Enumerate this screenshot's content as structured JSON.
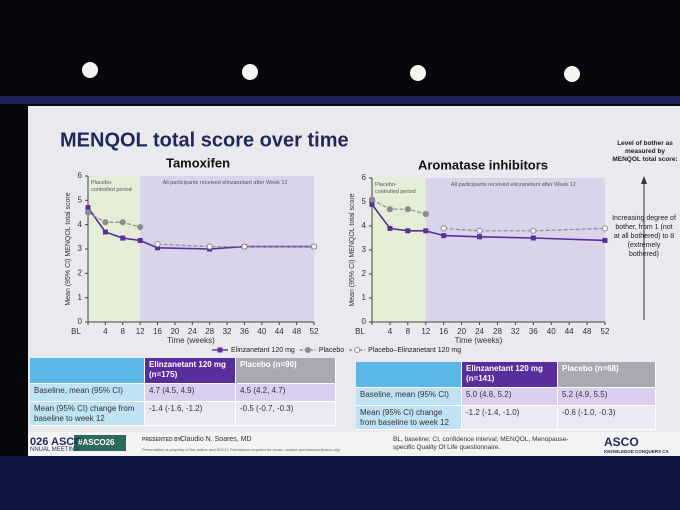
{
  "header": {
    "title": "MENQOL total score over time"
  },
  "chart_data": [
    {
      "type": "line",
      "title": "Tamoxifen",
      "x_label": "Time (weeks)",
      "y_label": "Mean (95% CI) MENQOL total score",
      "periods": [
        {
          "label": "Placebo-controlled period",
          "xlim": [
            0,
            12
          ],
          "color": "#e4eed6"
        },
        {
          "label": "All participants received elinzanetant after Week 12",
          "xlim": [
            12,
            52
          ],
          "color": "#d9d3ec"
        }
      ],
      "x": [
        0,
        4,
        8,
        12,
        16,
        28,
        36,
        52
      ],
      "xlim": [
        0,
        52
      ],
      "xticks": [
        {
          "value": 0,
          "label": "BL"
        },
        4,
        8,
        12,
        16,
        20,
        24,
        28,
        32,
        36,
        40,
        44,
        48,
        52
      ],
      "ylim": [
        0,
        6
      ],
      "yticks": [
        0,
        1,
        2,
        3,
        4,
        5,
        6
      ],
      "series": [
        {
          "name": "Elinzanetant 120 mg",
          "color": "#5a2d9c",
          "values": [
            4.7,
            3.7,
            3.45,
            3.35,
            3.05,
            3.0,
            3.1,
            3.1
          ]
        },
        {
          "name": "Placebo",
          "color": "#8c8c8c",
          "values": [
            4.5,
            4.1,
            4.1,
            3.9,
            null,
            null,
            null,
            null
          ]
        },
        {
          "name": "Placebo–Elinzanetant 120 mg",
          "color": "#8c8c8c",
          "values": [
            null,
            null,
            null,
            null,
            3.2,
            3.1,
            3.1,
            3.1
          ]
        }
      ]
    },
    {
      "type": "line",
      "title": "Aromatase inhibitors",
      "x_label": "Time (weeks)",
      "y_label": "Mean (95% CI) MENQOL total score",
      "periods": [
        {
          "label": "Placebo-controlled period",
          "xlim": [
            0,
            12
          ],
          "color": "#e4eed6"
        },
        {
          "label": "All participants received elinzanetant after Week 12",
          "xlim": [
            12,
            52
          ],
          "color": "#d9d3ec"
        }
      ],
      "x": [
        0,
        4,
        8,
        12,
        16,
        24,
        36,
        52
      ],
      "xlim": [
        0,
        52
      ],
      "xticks": [
        {
          "value": 0,
          "label": "BL"
        },
        4,
        8,
        12,
        16,
        20,
        24,
        28,
        32,
        36,
        40,
        44,
        48,
        52
      ],
      "ylim": [
        0,
        6
      ],
      "yticks": [
        0,
        1,
        2,
        3,
        4,
        5,
        6
      ],
      "series": [
        {
          "color": "#5a2d9c",
          "values": [
            4.9,
            3.9,
            3.8,
            3.8,
            3.6,
            3.55,
            3.5,
            3.4
          ]
        },
        {
          "color": "#8c8c8c",
          "values": [
            5.1,
            4.7,
            4.7,
            4.5,
            null,
            null,
            null,
            null
          ]
        },
        {
          "color": "#8c8c8c",
          "values": [
            null,
            null,
            null,
            null,
            3.9,
            3.8,
            3.8,
            3.9
          ]
        }
      ]
    }
  ],
  "tables": [
    {
      "columns": [
        "Elinzanetant 120 mg (n=175)",
        "Placebo (n=90)"
      ],
      "rows": [
        [
          "Baseline, mean (95% CI)",
          "4.7 (4.5, 4.9)",
          "4.5 (4.2, 4.7)"
        ],
        [
          "Mean (95% CI) change from baseline to week 12",
          "-1.4 (-1.6, -1.2)",
          "-0.5 (-0.7, -0.3)"
        ]
      ]
    },
    {
      "columns": [
        "Elinzanetant 120 mg (n=141)",
        "Placebo (n=68)"
      ],
      "rows": [
        [
          "Baseline, mean (95% CI)",
          "5.0 (4.8, 5.2)",
          "5.2 (4.9, 5.5)"
        ],
        [
          "Mean (95% CI) change from baseline to week 12",
          "-1.2 (-1.4, -1.0)",
          "-0.6 (-1.0, -0.3)"
        ]
      ]
    }
  ],
  "note": {
    "title": "Level of bother as measured by MENQOL total score:",
    "body": "Increasing degree of bother, from 1 (not at all bothered) to 8 (extremely bothered)"
  },
  "footer": {
    "logo_left": "026 ASCO",
    "meeting": "NNUAL MEETING",
    "hashtag": "#ASCO26",
    "presenter_label": "PRESENTED BY:",
    "presenter": "Claudio N. Soares, MD",
    "disclaimer": "Presentation is property of the author and ASCO. Permission required for reuse; contact permissions@asco.org.",
    "abbreviations": "BL, baseline; CI, confidence interval; MENQOL, Menopause-specific Quality Of Life questionnaire.",
    "logo_right": "ASCO",
    "logo_right_tagline": "KNOWLEDGE CONQUERS CA"
  }
}
